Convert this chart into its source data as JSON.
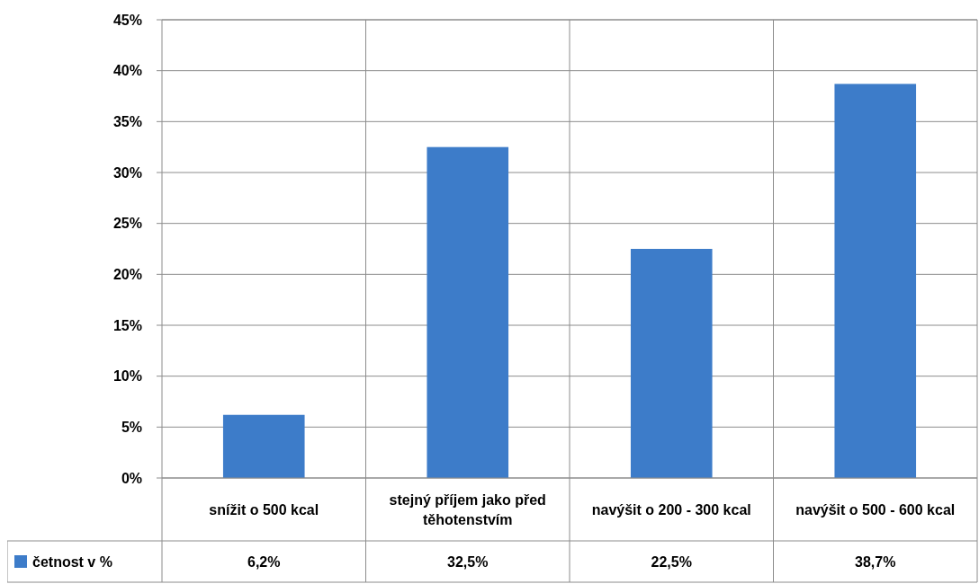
{
  "chart_data": {
    "type": "bar",
    "categories": [
      "snížit o 500 kcal",
      "stejný příjem jako před těhotenstvím",
      "navýšit o 200 - 300 kcal",
      "navýšit o 500 - 600 kcal"
    ],
    "series": [
      {
        "name": "četnost v %",
        "color": "#3d7cc9",
        "values": [
          6.2,
          32.5,
          22.5,
          38.7
        ],
        "value_labels": [
          "6,2%",
          "32,5%",
          "22,5%",
          "38,7%"
        ]
      }
    ],
    "ylim": [
      0,
      45
    ],
    "yticks": [
      {
        "value": 0,
        "label": "0%"
      },
      {
        "value": 5,
        "label": "5%"
      },
      {
        "value": 10,
        "label": "10%"
      },
      {
        "value": 15,
        "label": "15%"
      },
      {
        "value": 20,
        "label": "20%"
      },
      {
        "value": 25,
        "label": "25%"
      },
      {
        "value": 30,
        "label": "30%"
      },
      {
        "value": 35,
        "label": "35%"
      },
      {
        "value": 40,
        "label": "40%"
      },
      {
        "value": 45,
        "label": "45%"
      }
    ],
    "grid": "y",
    "legend": "bottom left"
  }
}
